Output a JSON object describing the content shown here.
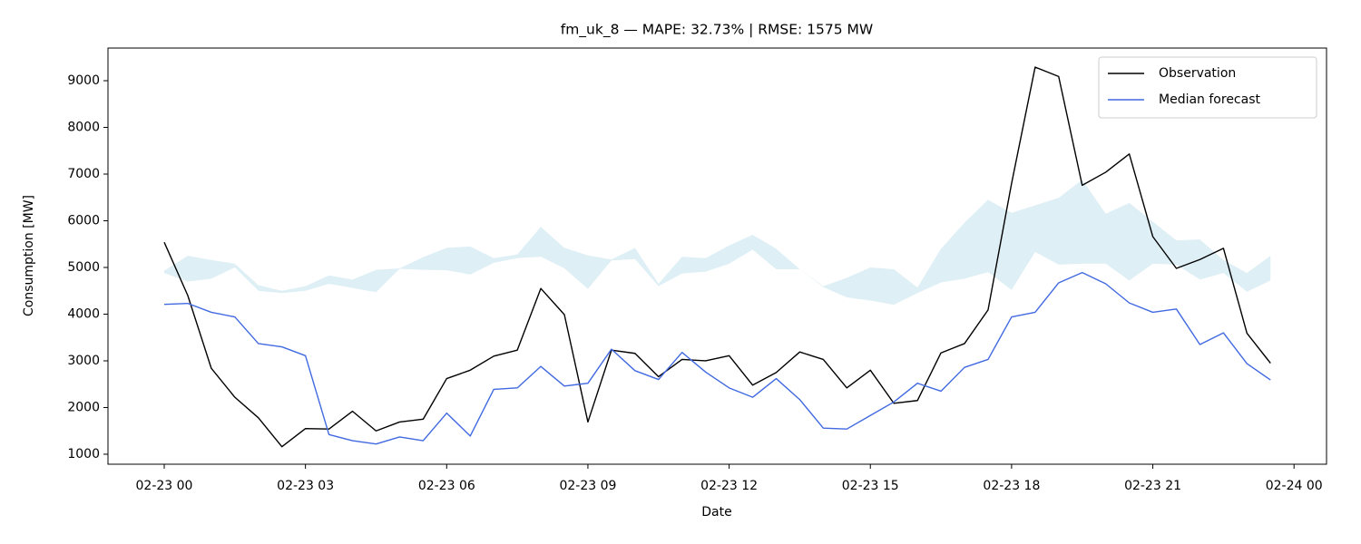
{
  "chart_data": {
    "type": "line",
    "title": "fm_uk_8 — MAPE: 32.73% | RMSE: 1575 MW",
    "xlabel": "Date",
    "ylabel": "Consumption [MW]",
    "x": [
      0,
      0.5,
      1,
      1.5,
      2,
      2.5,
      3,
      3.5,
      4,
      4.5,
      5,
      5.5,
      6,
      6.5,
      7,
      7.5,
      8,
      8.5,
      9,
      9.5,
      10,
      10.5,
      11,
      11.5,
      12,
      12.5,
      13,
      13.5,
      14,
      14.5,
      15,
      15.5,
      16,
      16.5,
      17,
      17.5,
      18,
      18.5,
      19,
      19.5,
      20,
      20.5,
      21,
      21.5,
      22,
      22.5,
      23,
      23.5
    ],
    "series": [
      {
        "name": "Observation",
        "color": "#000000",
        "values": [
          5540,
          4400,
          2840,
          2220,
          1780,
          1160,
          1550,
          1540,
          1920,
          1500,
          1690,
          1750,
          2620,
          2800,
          3100,
          3230,
          4550,
          3990,
          1690,
          3230,
          3160,
          2660,
          3030,
          3000,
          3110,
          2480,
          2750,
          3190,
          3030,
          2420,
          2800,
          2090,
          2150,
          3170,
          3370,
          4090,
          6800,
          9290,
          9090,
          6760,
          7040,
          7430,
          5660,
          4980,
          5170,
          5410,
          3590,
          2950
        ]
      },
      {
        "name": "Median forecast",
        "color": "#4169e1",
        "values": [
          4210,
          4230,
          4040,
          3940,
          3370,
          3300,
          3110,
          1420,
          1290,
          1220,
          1370,
          1290,
          1880,
          1390,
          2390,
          2420,
          2880,
          2460,
          2520,
          3250,
          2790,
          2600,
          3180,
          2760,
          2420,
          2220,
          2620,
          2170,
          1560,
          1540,
          1830,
          2120,
          2520,
          2350,
          2860,
          3030,
          3940,
          4040,
          4670,
          4890,
          4650,
          4240,
          4040,
          4110,
          3350,
          3600,
          2940,
          2590
        ]
      }
    ],
    "band": {
      "color": "#add8e6",
      "lower": [
        4880,
        4700,
        4760,
        5000,
        4500,
        4450,
        4500,
        4650,
        4560,
        4470,
        4970,
        4950,
        4940,
        4850,
        5100,
        5200,
        5230,
        4980,
        4540,
        5150,
        5180,
        4600,
        4870,
        4910,
        5080,
        5380,
        4960,
        4960,
        4580,
        4360,
        4290,
        4200,
        4450,
        4680,
        4760,
        4900,
        4520,
        5330,
        5060,
        5080,
        5080,
        4720,
        5080,
        5060,
        4740,
        4880,
        4480,
        4720
      ],
      "upper": [
        4930,
        5250,
        5160,
        5080,
        4620,
        4500,
        4600,
        4830,
        4740,
        4950,
        4980,
        5220,
        5420,
        5450,
        5200,
        5280,
        5870,
        5420,
        5260,
        5170,
        5420,
        4650,
        5230,
        5200,
        5470,
        5700,
        5400,
        4960,
        4600,
        4780,
        5000,
        4960,
        4570,
        5400,
        5960,
        6450,
        6170,
        6330,
        6490,
        6880,
        6150,
        6380,
        5980,
        5580,
        5600,
        5160,
        4880,
        5250
      ]
    },
    "xlim": [
      -1.195,
      24.69
    ],
    "ylim": [
      786,
      9699
    ],
    "xticks": [
      {
        "value": 0,
        "label": "02-23 00"
      },
      {
        "value": 3,
        "label": "02-23 03"
      },
      {
        "value": 6,
        "label": "02-23 06"
      },
      {
        "value": 9,
        "label": "02-23 09"
      },
      {
        "value": 12,
        "label": "02-23 12"
      },
      {
        "value": 15,
        "label": "02-23 15"
      },
      {
        "value": 18,
        "label": "02-23 18"
      },
      {
        "value": 21,
        "label": "02-23 21"
      },
      {
        "value": 24,
        "label": "02-24 00"
      }
    ],
    "yticks": [
      1000,
      2000,
      3000,
      4000,
      5000,
      6000,
      7000,
      8000,
      9000
    ],
    "legend": "upper right",
    "grid": false
  }
}
